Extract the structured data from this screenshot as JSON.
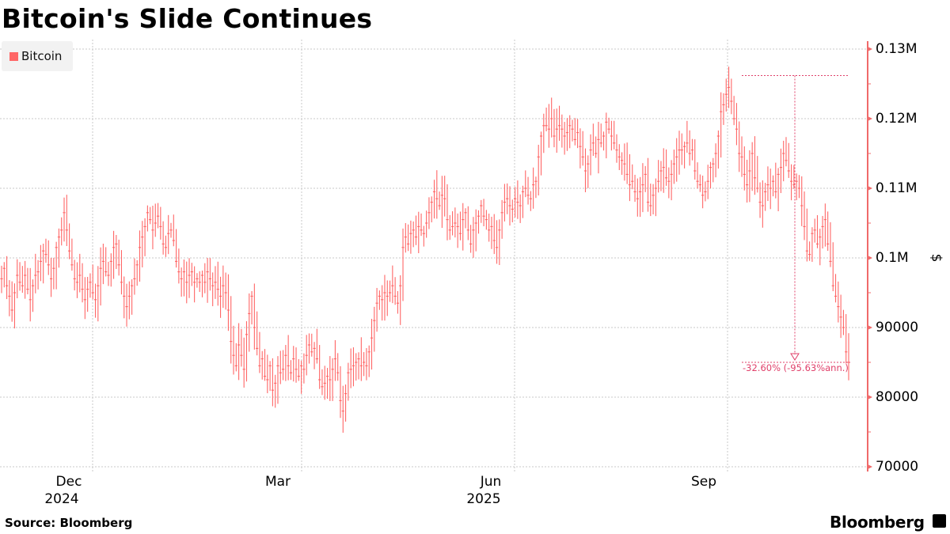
{
  "header": {
    "title": "Bitcoin's Slide Continues"
  },
  "legend": {
    "items": [
      {
        "label": "Bitcoin",
        "color": "#ff6666"
      }
    ]
  },
  "footer": {
    "source": "Source: Bloomberg",
    "brand": "Bloomberg"
  },
  "annotation": {
    "label": "-32.60% (-95.63%ann.)",
    "color": "#e0406a"
  },
  "chart_data": {
    "type": "bar",
    "subtype": "ohlc",
    "title": "Bitcoin's Slide Continues",
    "xlabel": "",
    "ylabel": "$",
    "ylim": [
      70000,
      130000
    ],
    "yticks": [
      {
        "value": 130000,
        "label": "0.13M"
      },
      {
        "value": 120000,
        "label": "0.12M"
      },
      {
        "value": 110000,
        "label": "0.11M"
      },
      {
        "value": 100000,
        "label": "0.1M"
      },
      {
        "value": 90000,
        "label": "90000"
      },
      {
        "value": 80000,
        "label": "80000"
      },
      {
        "value": 70000,
        "label": "70000"
      }
    ],
    "xticks": [
      {
        "label": "Dec",
        "sublabel": "2024",
        "x": 117
      },
      {
        "label": "Mar",
        "sublabel": "",
        "x": 381
      },
      {
        "label": "Jun",
        "sublabel": "2025",
        "x": 650
      },
      {
        "label": "Sep",
        "sublabel": "",
        "x": 919
      }
    ],
    "grid": true,
    "legend_position": "top-left",
    "series": [
      {
        "name": "Bitcoin",
        "color": "#ff6666",
        "values": [
          97000,
          98500,
          96000,
          94500,
          92500,
          95000,
          97500,
          96500,
          96000,
          97500,
          95500,
          94000,
          96000,
          97500,
          98000,
          99500,
          101000,
          100500,
          99000,
          97000,
          98500,
          101500,
          103000,
          104000,
          106500,
          104000,
          101000,
          99000,
          97000,
          96500,
          97500,
          95500,
          94000,
          95500,
          96500,
          95000,
          94000,
          96000,
          98500,
          99500,
          98000,
          97500,
          99500,
          101500,
          102000,
          99000,
          96500,
          94500,
          93000,
          94500,
          96000,
          97000,
          99000,
          101500,
          103000,
          104500,
          106500,
          105500,
          104000,
          105000,
          106000,
          104500,
          102000,
          101500,
          103500,
          104000,
          102500,
          99500,
          98000,
          97000,
          98000,
          96500,
          97500,
          98000,
          96500,
          97000,
          96500,
          97500,
          96500,
          98000,
          97000,
          96000,
          96500,
          95500,
          94500,
          96000,
          95000,
          92500,
          88000,
          86000,
          84500,
          87500,
          86000,
          84000,
          89000,
          92000,
          94500,
          90000,
          87000,
          84500,
          85500,
          83000,
          82500,
          84500,
          81000,
          82000,
          84500,
          83500,
          84000,
          86000,
          84500,
          83500,
          85500,
          84000,
          83000,
          84500,
          84000,
          86000,
          87500,
          86500,
          87000,
          85500,
          82500,
          81500,
          82000,
          83000,
          82500,
          84000,
          85500,
          83500,
          79500,
          78000,
          80500,
          83500,
          84000,
          84500,
          85000,
          85500,
          84500,
          85000,
          84500,
          86500,
          88500,
          91000,
          93500,
          94500,
          94000,
          95000,
          94500,
          95000,
          96000,
          94500,
          93500,
          96000,
          101500,
          103000,
          102000,
          103500,
          104000,
          103000,
          104500,
          104000,
          103500,
          105000,
          106500,
          108000,
          109500,
          108500,
          107500,
          109000,
          108500,
          105500,
          104000,
          104500,
          105000,
          104500,
          103500,
          105500,
          106500,
          104000,
          102000,
          104000,
          105000,
          106000,
          107500,
          106000,
          105500,
          104000,
          104500,
          102500,
          101500,
          104000,
          106500,
          108000,
          108500,
          107500,
          107000,
          108500,
          108000,
          107500,
          109500,
          110000,
          109000,
          108500,
          110500,
          111000,
          114500,
          117500,
          119000,
          119000,
          118500,
          120000,
          117500,
          118500,
          119000,
          118500,
          117500,
          118000,
          119000,
          118500,
          117000,
          118000,
          116000,
          114500,
          112500,
          113500,
          115500,
          116500,
          115000,
          117000,
          116500,
          117500,
          119500,
          118500,
          117500,
          116500,
          115500,
          114500,
          114000,
          113500,
          112000,
          110500,
          111000,
          109500,
          108500,
          109500,
          110500,
          112000,
          108000,
          107500,
          109000,
          110000,
          111000,
          112500,
          113000,
          111500,
          111000,
          112000,
          113500,
          114500,
          115500,
          115500,
          116000,
          116500,
          115000,
          115500,
          112500,
          111000,
          110500,
          109000,
          109500,
          111000,
          113000,
          113500,
          115000,
          117500,
          121000,
          122000,
          123500,
          124500,
          122500,
          120000,
          118500,
          115000,
          114500,
          112000,
          110500,
          112500,
          115000,
          111500,
          110000,
          108000,
          107500,
          109500,
          110500,
          110000,
          111000,
          109500,
          112000,
          113000,
          115000,
          114000,
          112500,
          111000,
          110500,
          111000,
          110000,
          107500,
          104500,
          101000,
          100500,
          103500,
          104000,
          102000,
          103000,
          104500,
          105500,
          102000,
          99500,
          96000,
          94500,
          93000,
          91500,
          90000,
          86500,
          85000
        ]
      }
    ],
    "annotations": [
      {
        "type": "peak-to-trough",
        "from_value": 126200,
        "to_value": 85000,
        "label": "-32.60% (-95.63%ann.)"
      }
    ]
  }
}
